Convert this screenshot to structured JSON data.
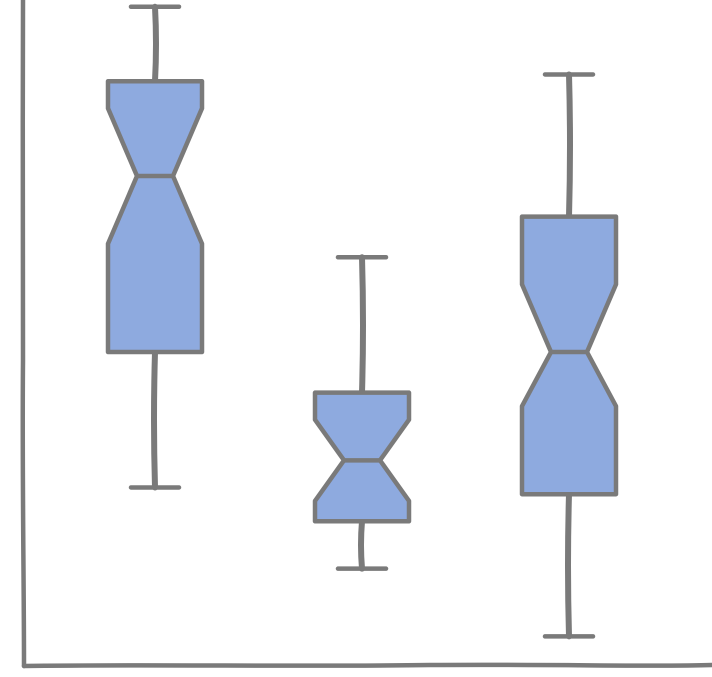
{
  "chart_data": {
    "type": "boxplot",
    "style": "xkcd-sketch",
    "notched": true,
    "grid": false,
    "legend": "none",
    "title": "",
    "xlabel": "",
    "ylabel": "",
    "ylim": [
      0,
      10
    ],
    "colors": {
      "box_fill": "#8eaadf",
      "stroke": "#7a7a7a",
      "background": "#ffffff"
    },
    "boxes": [
      {
        "whisker_low": 2.8,
        "q1": 4.8,
        "median": 7.4,
        "q3": 8.8,
        "whisker_high": 9.9,
        "notch_low": 6.4,
        "notch_high": 8.4
      },
      {
        "whisker_low": 1.6,
        "q1": 2.3,
        "median": 3.2,
        "q3": 4.2,
        "whisker_high": 6.2,
        "notch_low": 2.6,
        "notch_high": 3.8
      },
      {
        "whisker_low": 0.6,
        "q1": 2.7,
        "median": 4.8,
        "q3": 6.8,
        "whisker_high": 8.9,
        "notch_low": 4.0,
        "notch_high": 5.8
      }
    ]
  }
}
